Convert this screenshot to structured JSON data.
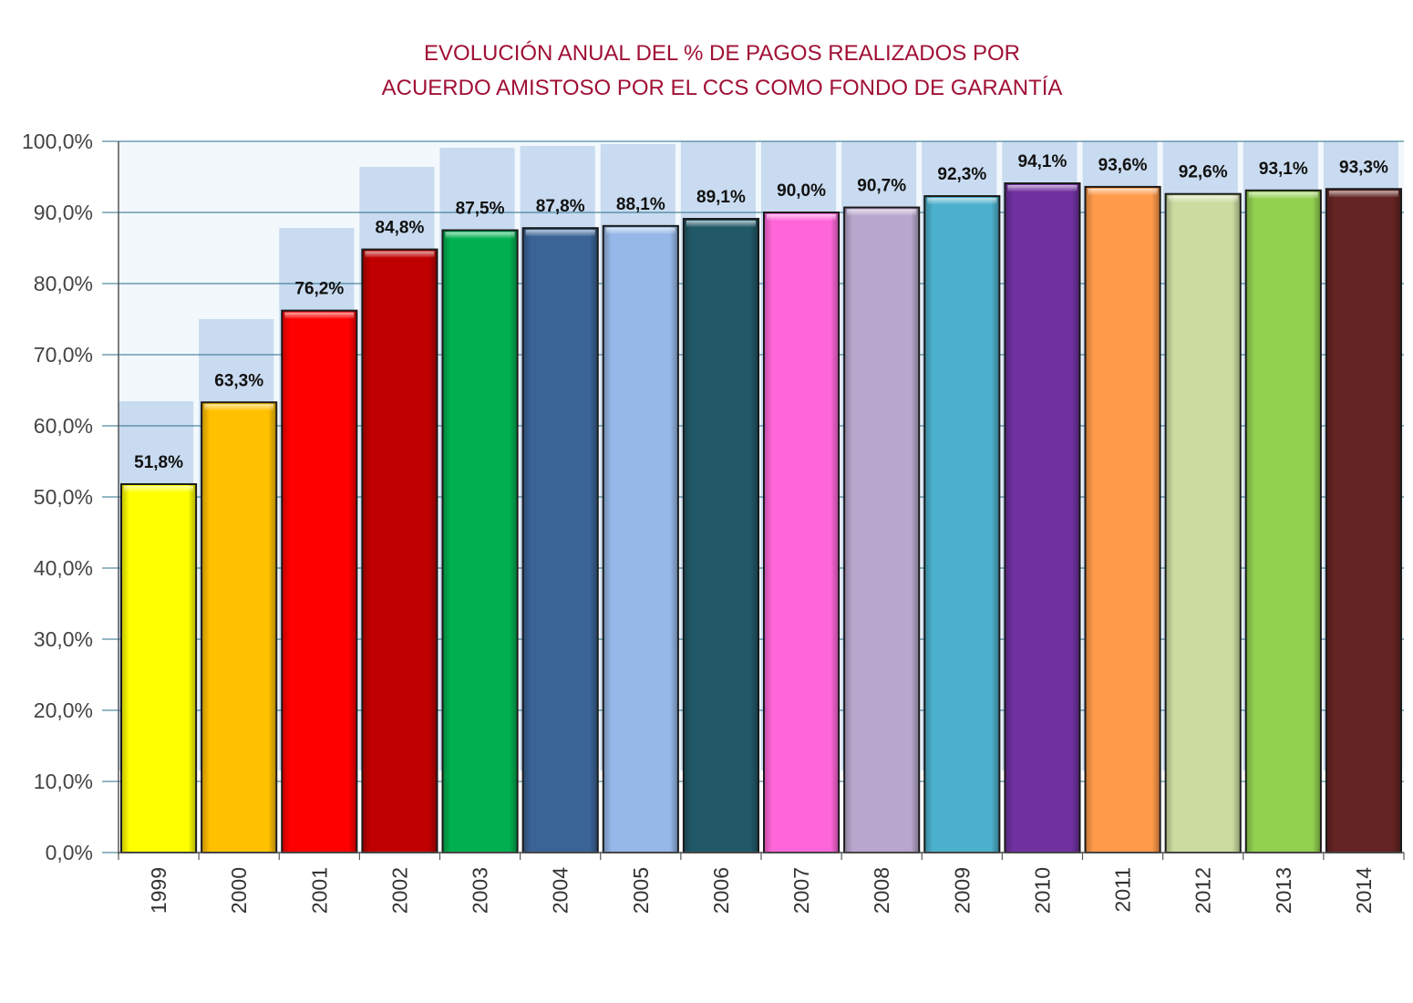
{
  "chart_data": {
    "type": "bar",
    "title_lines": [
      "EVOLUCIÓN ANUAL DEL % DE PAGOS REALIZADOS POR",
      "ACUERDO AMISTOSO POR EL CCS COMO FONDO DE GARANTÍA"
    ],
    "xlabel": "",
    "ylabel": "",
    "ylim": [
      0,
      100
    ],
    "y_ticks": [
      "0,0%",
      "10,0%",
      "20,0%",
      "30,0%",
      "40,0%",
      "50,0%",
      "60,0%",
      "70,0%",
      "80,0%",
      "90,0%",
      "100,0%"
    ],
    "grid": true,
    "legend": "none",
    "categories": [
      "1999",
      "2000",
      "2001",
      "2002",
      "2003",
      "2004",
      "2005",
      "2006",
      "2007",
      "2008",
      "2009",
      "2010",
      "2011",
      "2012",
      "2013",
      "2014"
    ],
    "values": [
      51.8,
      63.3,
      76.2,
      84.8,
      87.5,
      87.8,
      88.1,
      89.1,
      90.0,
      90.7,
      92.3,
      94.1,
      93.6,
      92.6,
      93.1,
      93.3
    ],
    "data_labels": [
      "51,8%",
      "63,3%",
      "76,2%",
      "84,8%",
      "87,5%",
      "87,8%",
      "88,1%",
      "89,1%",
      "90,0%",
      "90,7%",
      "92,3%",
      "94,1%",
      "93,6%",
      "92,6%",
      "93,1%",
      "93,3%"
    ],
    "bar_colors": [
      "#ffff00",
      "#ffc000",
      "#ff0000",
      "#c00000",
      "#00b050",
      "#3a6496",
      "#95b8e8",
      "#215968",
      "#ff66d9",
      "#b8a6cc",
      "#4bb0cc",
      "#7030a0",
      "#ff9a4a",
      "#ccdca0",
      "#92d050",
      "#632423"
    ],
    "colors": {
      "title": "#a01035",
      "grid": "#2a6e8a",
      "background_panel": "#f2f8fc",
      "background_steps": "#c6d9ef"
    }
  }
}
